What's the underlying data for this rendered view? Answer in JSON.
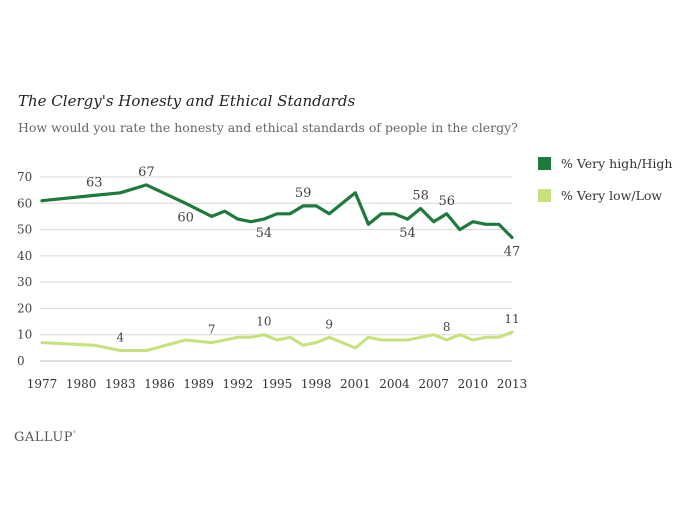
{
  "brand": "GALLUP",
  "colors": {
    "high": "#1e7a3c",
    "low": "#c6e27a",
    "grid": "#d9d9d9",
    "text": "#444444"
  },
  "chart_data": {
    "type": "line",
    "title": "The Clergy's Honesty and Ethical Standards",
    "subtitle": "How would you rate the honesty and ethical standards of people in the clergy?",
    "xlabel": "",
    "ylabel": "",
    "xlim": [
      1977,
      2013
    ],
    "ylim": [
      0,
      70
    ],
    "yticks": [
      0,
      10,
      20,
      30,
      40,
      50,
      60,
      70
    ],
    "xticks": [
      1977,
      1980,
      1983,
      1986,
      1989,
      1992,
      1995,
      1998,
      2001,
      2004,
      2007,
      2010,
      2013
    ],
    "grid": true,
    "legend_position": "right",
    "series": [
      {
        "name": "% Very high/High",
        "color": "#1e7a3c",
        "x": [
          1977,
          1981,
          1983,
          1985,
          1988,
          1990,
          1991,
          1992,
          1993,
          1994,
          1995,
          1996,
          1997,
          1998,
          1999,
          2000,
          2001,
          2002,
          2003,
          2004,
          2005,
          2006,
          2007,
          2008,
          2009,
          2010,
          2011,
          2012,
          2013
        ],
        "values": [
          61,
          63,
          64,
          67,
          60,
          55,
          57,
          54,
          53,
          54,
          56,
          56,
          59,
          59,
          56,
          60,
          64,
          52,
          56,
          56,
          54,
          58,
          53,
          56,
          50,
          53,
          52,
          52,
          47
        ],
        "labels": [
          {
            "x": 1981,
            "value": 63,
            "text": "63",
            "pos": "above"
          },
          {
            "x": 1985,
            "value": 67,
            "text": "67",
            "pos": "above"
          },
          {
            "x": 1988,
            "value": 60,
            "text": "60",
            "pos": "below"
          },
          {
            "x": 1994,
            "value": 54,
            "text": "54",
            "pos": "below"
          },
          {
            "x": 1997,
            "value": 59,
            "text": "59",
            "pos": "above"
          },
          {
            "x": 2005,
            "value": 54,
            "text": "54",
            "pos": "below"
          },
          {
            "x": 2006,
            "value": 58,
            "text": "58",
            "pos": "above"
          },
          {
            "x": 2008,
            "value": 56,
            "text": "56",
            "pos": "above"
          },
          {
            "x": 2013,
            "value": 47,
            "text": "47",
            "pos": "below"
          }
        ]
      },
      {
        "name": "% Very low/Low",
        "color": "#c6e27a",
        "x": [
          1977,
          1981,
          1983,
          1985,
          1988,
          1990,
          1991,
          1992,
          1993,
          1994,
          1995,
          1996,
          1997,
          1998,
          1999,
          2000,
          2001,
          2002,
          2003,
          2004,
          2005,
          2006,
          2007,
          2008,
          2009,
          2010,
          2011,
          2012,
          2013
        ],
        "values": [
          7,
          6,
          4,
          4,
          8,
          7,
          8,
          9,
          9,
          10,
          8,
          9,
          6,
          7,
          9,
          7,
          5,
          9,
          8,
          8,
          8,
          9,
          10,
          8,
          10,
          8,
          9,
          9,
          11
        ],
        "labels": [
          {
            "x": 1983,
            "value": 4,
            "text": "4",
            "pos": "above"
          },
          {
            "x": 1990,
            "value": 7,
            "text": "7",
            "pos": "above"
          },
          {
            "x": 1994,
            "value": 10,
            "text": "10",
            "pos": "above"
          },
          {
            "x": 1999,
            "value": 9,
            "text": "9",
            "pos": "above"
          },
          {
            "x": 2008,
            "value": 8,
            "text": "8",
            "pos": "above"
          },
          {
            "x": 2013,
            "value": 11,
            "text": "11",
            "pos": "above"
          }
        ]
      }
    ]
  }
}
